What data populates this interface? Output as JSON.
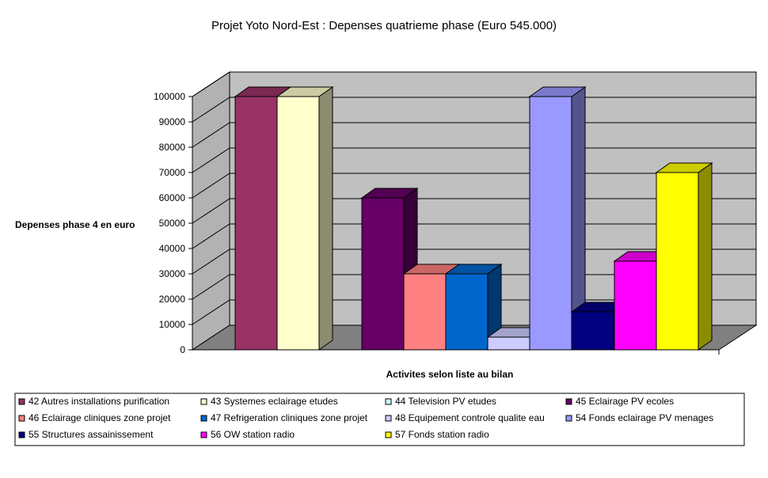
{
  "chart_data": {
    "type": "bar",
    "title": "Projet Yoto Nord-Est : Depenses quatrieme phase (Euro 545.000)",
    "xlabel": "Activites selon liste au bilan",
    "ylabel": "Depenses phase 4 en euro",
    "ylim": [
      0,
      100000
    ],
    "yticks": [
      "0",
      "10000",
      "20000",
      "30000",
      "40000",
      "50000",
      "60000",
      "70000",
      "80000",
      "90000",
      "100000"
    ],
    "grid": true,
    "legend_position": "bottom",
    "series": [
      {
        "name": "42 Autres installations purification",
        "values": [
          100000
        ],
        "color": "#993366"
      },
      {
        "name": "43 Systemes eclairage etudes",
        "values": [
          100000
        ],
        "color": "#ffffcc"
      },
      {
        "name": "44 Television PV etudes",
        "values": [
          0
        ],
        "color": "#ccffff"
      },
      {
        "name": "45 Eclairage PV ecoles",
        "values": [
          60000
        ],
        "color": "#660066"
      },
      {
        "name": "46 Eclairage cliniques zone projet",
        "values": [
          30000
        ],
        "color": "#ff8080"
      },
      {
        "name": "47 Refrigeration cliniques zone projet",
        "values": [
          30000
        ],
        "color": "#0066cc"
      },
      {
        "name": "48 Equipement controle qualite eau",
        "values": [
          5000
        ],
        "color": "#ccccff"
      },
      {
        "name": "54 Fonds eclairage PV menages",
        "values": [
          100000
        ],
        "color": "#9999ff"
      },
      {
        "name": "55 Structures assainissement",
        "values": [
          15000
        ],
        "color": "#000080"
      },
      {
        "name": "56 OW station radio",
        "values": [
          35000
        ],
        "color": "#ff00ff"
      },
      {
        "name": "57 Fonds station radio",
        "values": [
          70000
        ],
        "color": "#ffff00"
      }
    ]
  }
}
